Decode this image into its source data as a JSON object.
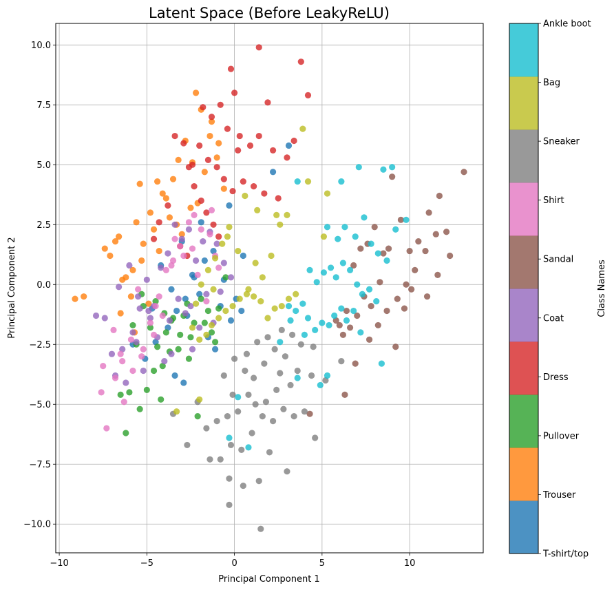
{
  "chart_data": {
    "type": "scatter",
    "title": "Latent Space (Before LeakyReLU)",
    "xlabel": "Principal Component 1",
    "ylabel": "Principal Component 2",
    "xlim": [
      -10.2,
      14.2
    ],
    "ylim": [
      -11.2,
      10.9
    ],
    "x_ticks": [
      -10,
      -5,
      0,
      5,
      10
    ],
    "y_ticks": [
      -10.0,
      -7.5,
      -5.0,
      -2.5,
      0.0,
      2.5,
      5.0,
      7.5,
      10.0
    ],
    "grid": true,
    "colorbar": {
      "label": "Class Names",
      "labels": [
        "T-shirt/top",
        "Trouser",
        "Pullover",
        "Dress",
        "Coat",
        "Sandal",
        "Shirt",
        "Sneaker",
        "Bag",
        "Ankle boot"
      ],
      "colors": [
        "#1f77b4",
        "#ff7f0e",
        "#2ca02c",
        "#d62728",
        "#9467bd",
        "#8c564b",
        "#e377c2",
        "#7f7f7f",
        "#bcbd22",
        "#17becf"
      ]
    },
    "series": [
      {
        "class": 0,
        "x": [
          -4.5,
          -3.8,
          -3.3,
          -2.8,
          -2.3,
          -1.7,
          -1.2,
          -0.6,
          0.1,
          0.4,
          -0.2,
          -1.5,
          -2.7,
          -3.6,
          -4.2,
          -5.8,
          -5.1,
          -3.4,
          -2.9,
          -1.1,
          2.2,
          3.1,
          -0.3,
          -1.9,
          -3.0,
          -4.7,
          -2.0,
          -0.8,
          0.5,
          -2.4
        ],
        "y": [
          -2.4,
          -1.8,
          -1.1,
          -0.6,
          0.3,
          1.0,
          1.4,
          0.2,
          -0.6,
          -1.1,
          -1.5,
          -2.2,
          -1.3,
          -0.2,
          0.8,
          -2.5,
          -3.1,
          -3.8,
          -4.1,
          -2.7,
          4.7,
          5.8,
          3.3,
          2.6,
          1.8,
          -1.0,
          -0.4,
          -0.9,
          1.2,
          0.4
        ]
      },
      {
        "class": 1,
        "x": [
          -9.1,
          -8.6,
          -7.4,
          -7.1,
          -6.6,
          -6.2,
          -5.8,
          -5.6,
          -5.4,
          -5.2,
          -4.8,
          -4.4,
          -4.1,
          -3.7,
          -3.2,
          -2.8,
          -2.4,
          -2.1,
          -1.7,
          -1.3,
          -0.9,
          -0.6,
          -6.8,
          -6.4,
          -5.9,
          -5.3,
          -4.6,
          -3.9,
          -3.5,
          -3.0,
          -2.5,
          -2.2,
          -1.9,
          -1.4,
          -1.0,
          -6.5,
          -5.7,
          -4.9,
          -4.3,
          -3.3
        ],
        "y": [
          -0.6,
          -0.5,
          1.5,
          1.2,
          2.0,
          0.3,
          0.6,
          2.6,
          4.2,
          1.7,
          3.0,
          4.3,
          3.8,
          2.8,
          5.2,
          6.0,
          5.1,
          3.4,
          4.7,
          6.8,
          5.9,
          4.0,
          1.8,
          0.2,
          -0.5,
          1.0,
          2.3,
          3.6,
          4.4,
          2.1,
          3.2,
          8.0,
          7.3,
          6.2,
          5.3,
          -1.2,
          -2.0,
          -0.8,
          1.4,
          2.5
        ]
      },
      {
        "class": 2,
        "x": [
          -6.2,
          -5.8,
          -5.4,
          -5.0,
          -4.6,
          -4.2,
          -3.9,
          -3.6,
          -3.2,
          -2.9,
          -2.5,
          -2.1,
          -1.7,
          -1.3,
          -0.9,
          -0.5,
          -6.0,
          -5.6,
          -5.2,
          -4.8,
          -4.4,
          -4.0,
          -3.5,
          -3.1,
          -2.7,
          -2.3,
          -1.9,
          -1.5,
          -1.1,
          -5.3,
          -4.5,
          -3.7,
          -2.6,
          -6.5,
          -4.1
        ],
        "y": [
          -6.2,
          -1.7,
          -5.2,
          -4.4,
          -3.6,
          -4.8,
          -2.0,
          -1.5,
          -2.7,
          -1.3,
          -2.2,
          -5.5,
          -1.6,
          -2.0,
          -1.0,
          0.3,
          -4.5,
          -2.5,
          -0.9,
          -1.8,
          -2.6,
          -1.2,
          -1.4,
          -2.1,
          -0.8,
          -1.6,
          -0.6,
          -1.1,
          -2.4,
          -0.4,
          -0.7,
          -2.8,
          -3.1,
          -4.6,
          -3.4
        ]
      },
      {
        "class": 3,
        "x": [
          1.4,
          3.8,
          4.2,
          -0.2,
          0.0,
          1.9,
          -1.8,
          -1.3,
          -0.8,
          -0.4,
          0.3,
          0.9,
          1.4,
          2.2,
          3.0,
          3.4,
          -2.4,
          -2.0,
          -1.5,
          -1.0,
          -0.6,
          -0.1,
          0.5,
          1.1,
          1.7,
          2.5,
          -3.4,
          -2.9,
          -2.6,
          -2.3,
          -1.9,
          -1.6,
          -1.2,
          -0.9,
          -3.8,
          -4.3,
          -4.6,
          -3.1,
          -2.7,
          0.2
        ],
        "y": [
          9.9,
          9.3,
          7.9,
          9.0,
          8.0,
          7.6,
          7.4,
          7.0,
          7.5,
          6.5,
          6.2,
          5.8,
          6.2,
          5.6,
          5.3,
          6.0,
          5.0,
          5.8,
          5.2,
          4.9,
          4.4,
          3.9,
          4.3,
          4.1,
          3.8,
          3.6,
          6.2,
          5.9,
          4.9,
          4.1,
          3.5,
          3.0,
          2.5,
          2.0,
          3.3,
          2.6,
          1.9,
          1.6,
          1.2,
          5.6
        ]
      },
      {
        "class": 4,
        "x": [
          -7.9,
          -7.4,
          -7.0,
          -6.6,
          -6.2,
          -5.8,
          -5.4,
          -5.0,
          -4.6,
          -4.2,
          -3.8,
          -3.4,
          -3.0,
          -2.6,
          -2.2,
          -1.8,
          -1.4,
          -1.0,
          -0.6,
          -0.2,
          -6.8,
          -6.4,
          -6.0,
          -5.6,
          -5.2,
          -4.8,
          -4.4,
          -4.0,
          -3.6,
          -3.2,
          -2.8,
          -2.4,
          -2.0,
          -1.6,
          -1.2,
          -0.8,
          -5.5,
          -4.9,
          -3.7,
          -2.5
        ],
        "y": [
          -1.3,
          -1.4,
          -2.9,
          -0.1,
          -4.1,
          -2.0,
          -1.0,
          0.2,
          -0.9,
          0.7,
          1.3,
          2.5,
          1.9,
          2.3,
          1.0,
          1.8,
          2.2,
          1.7,
          0.9,
          0.3,
          -3.8,
          -2.7,
          0.8,
          -2.4,
          -3.6,
          -1.4,
          -2.2,
          -3.2,
          -2.9,
          -0.6,
          -1.2,
          -2.7,
          -1.8,
          -0.4,
          -1.6,
          -0.3,
          -0.5,
          -1.1,
          -1.5,
          -0.9
        ]
      },
      {
        "class": 5,
        "x": [
          13.1,
          11.7,
          11.1,
          10.5,
          10.0,
          9.5,
          9.0,
          8.5,
          8.0,
          7.6,
          7.2,
          6.8,
          6.4,
          6.0,
          12.1,
          11.5,
          10.9,
          10.3,
          9.8,
          9.3,
          8.8,
          8.3,
          7.8,
          7.4,
          7.0,
          6.6,
          6.2,
          5.8,
          12.3,
          11.6,
          11.0,
          10.1,
          9.7,
          9.2,
          8.7,
          8.2,
          7.7,
          6.9,
          6.3,
          4.3
        ],
        "y": [
          4.7,
          3.7,
          3.0,
          1.8,
          1.4,
          2.7,
          4.5,
          1.3,
          2.4,
          1.7,
          1.5,
          0.8,
          -1.1,
          -1.7,
          2.2,
          2.1,
          1.4,
          0.6,
          0.0,
          -0.6,
          1.5,
          0.1,
          -0.9,
          -0.5,
          -1.3,
          -1.8,
          -2.1,
          -1.5,
          1.2,
          0.4,
          -0.5,
          -0.2,
          -1.0,
          -2.6,
          -1.1,
          -1.7,
          -2.3,
          -3.3,
          -4.6,
          -5.4
        ]
      },
      {
        "class": 6,
        "x": [
          -7.3,
          -7.6,
          -7.5,
          -6.9,
          -6.4,
          -5.9,
          -5.3,
          -4.8,
          -4.3,
          -3.9,
          -3.4,
          -2.9,
          -2.4,
          -1.9,
          -1.4,
          -0.9,
          -6.8,
          -6.3,
          -5.8,
          -5.2,
          -4.6,
          -4.1,
          -3.6,
          -3.1,
          -2.6,
          -2.1,
          -1.6,
          -1.1,
          -6.5,
          -5.5,
          -4.5,
          -3.5,
          -2.3,
          -1.3
        ],
        "y": [
          -6.0,
          -4.5,
          -3.4,
          -1.9,
          -3.2,
          -2.3,
          -3.0,
          -1.6,
          -0.5,
          0.6,
          1.9,
          1.2,
          1.5,
          2.3,
          2.1,
          0.7,
          -3.9,
          -4.9,
          -3.6,
          -2.7,
          -2.1,
          -1.3,
          0.8,
          1.6,
          2.6,
          0.4,
          -0.7,
          1.2,
          -2.9,
          -0.2,
          -0.9,
          1.0,
          2.9,
          3.1
        ]
      },
      {
        "class": 7,
        "x": [
          1.5,
          -0.3,
          -0.3,
          0.5,
          1.4,
          2.0,
          3.0,
          -2.7,
          -1.4,
          -0.8,
          -0.2,
          0.4,
          1.0,
          1.6,
          2.2,
          2.8,
          3.4,
          4.0,
          4.6,
          5.2,
          -3.5,
          -1.6,
          -1.0,
          -0.4,
          0.2,
          0.8,
          1.2,
          1.8,
          2.4,
          2.6,
          3.2,
          3.6,
          4.4,
          -0.1,
          0.6,
          1.1,
          1.7,
          2.3,
          2.9,
          3.8,
          -2.1,
          -0.6,
          0.0,
          0.7,
          1.3,
          1.9,
          2.7,
          3.3,
          4.5,
          6.1
        ],
        "y": [
          -10.2,
          -9.2,
          -8.1,
          -8.4,
          -8.2,
          -7.0,
          -7.8,
          -6.7,
          -7.3,
          -7.3,
          -6.7,
          -6.9,
          -6.2,
          -5.5,
          -5.7,
          -5.2,
          -5.5,
          -5.3,
          -6.4,
          -4.0,
          -5.4,
          -6.0,
          -5.7,
          -5.5,
          -5.3,
          -4.6,
          -5.0,
          -4.9,
          -4.4,
          -3.7,
          -4.2,
          -3.6,
          -3.8,
          -4.6,
          -3.6,
          -3.9,
          -3.3,
          -2.7,
          -3.0,
          -2.5,
          -4.9,
          -3.8,
          -3.1,
          -2.9,
          -2.4,
          -2.2,
          -1.9,
          -2.1,
          -2.6,
          -3.2
        ]
      },
      {
        "class": 8,
        "x": [
          3.9,
          4.2,
          5.3,
          5.1,
          3.0,
          2.6,
          2.1,
          1.6,
          1.2,
          0.8,
          0.3,
          -0.1,
          -0.5,
          -0.9,
          -1.3,
          -1.6,
          -2.0,
          -2.4,
          3.5,
          3.1,
          2.7,
          2.3,
          1.9,
          1.5,
          1.1,
          0.7,
          0.2,
          -0.3,
          -0.7,
          -1.1,
          -1.5,
          -1.9,
          -2.2,
          -3.3,
          -2.0,
          2.4,
          1.3,
          0.6,
          -0.4,
          -1.2
        ],
        "y": [
          6.5,
          4.3,
          3.8,
          2.0,
          2.9,
          2.5,
          1.2,
          0.3,
          0.9,
          -0.2,
          -0.6,
          -0.9,
          -1.1,
          -1.4,
          -1.7,
          -2.1,
          -2.3,
          -1.8,
          -0.4,
          -0.6,
          -0.9,
          -1.0,
          -1.4,
          -0.7,
          -0.5,
          -0.4,
          1.4,
          2.4,
          1.7,
          1.1,
          0.6,
          0.0,
          -0.8,
          -5.3,
          -4.8,
          2.9,
          3.1,
          3.7,
          2.0,
          -0.2
        ]
      },
      {
        "class": 9,
        "x": [
          3.6,
          6.1,
          7.1,
          8.5,
          9.0,
          9.8,
          5.3,
          5.9,
          6.3,
          6.9,
          7.4,
          7.8,
          8.2,
          8.7,
          9.2,
          4.3,
          4.7,
          5.1,
          5.5,
          5.8,
          6.2,
          6.6,
          7.0,
          7.3,
          7.7,
          8.1,
          3.1,
          3.5,
          3.9,
          4.2,
          4.6,
          5.0,
          5.4,
          5.7,
          6.1,
          6.4,
          6.8,
          7.2,
          8.4,
          0.2,
          0.8,
          2.6,
          3.6,
          4.9,
          5.3,
          -0.3,
          3.2,
          4.0
        ],
        "y": [
          4.3,
          4.3,
          4.9,
          4.8,
          4.9,
          2.7,
          2.4,
          1.9,
          2.4,
          2.0,
          2.8,
          1.7,
          1.3,
          1.0,
          2.3,
          0.6,
          0.1,
          0.5,
          0.7,
          0.3,
          0.9,
          0.6,
          0.0,
          -0.4,
          -0.2,
          -0.7,
          -0.9,
          -1.1,
          -0.8,
          -1.4,
          -1.9,
          -1.6,
          -1.7,
          -1.3,
          -1.0,
          -1.5,
          -1.1,
          -2.0,
          -3.3,
          -4.7,
          -6.8,
          -2.4,
          -3.9,
          -4.2,
          -3.8,
          -6.4,
          -1.5,
          -2.1
        ]
      }
    ]
  }
}
